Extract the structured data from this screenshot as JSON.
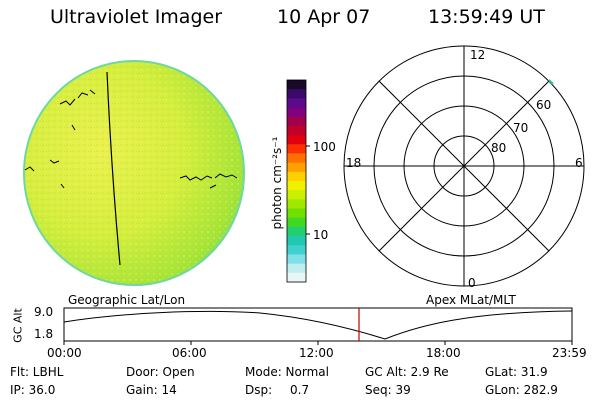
{
  "header": {
    "title": "Ultraviolet Imager",
    "date": "10 Apr 07",
    "time": "13:59:49 UT"
  },
  "colorbar": {
    "unit_label": "photon cm⁻²s⁻¹",
    "tick_100": "100",
    "tick_10": "10",
    "colors": [
      "#1a0a2a",
      "#3a0a6a",
      "#5a0a8a",
      "#800080",
      "#a0004a",
      "#c0002a",
      "#e00010",
      "#ff3000",
      "#ff7000",
      "#ffa000",
      "#ffd000",
      "#f0f000",
      "#c8f000",
      "#a0e800",
      "#70e000",
      "#40d820",
      "#20d070",
      "#20c8b0",
      "#40d0d0",
      "#80e0e8",
      "#c0eef0",
      "#e8f6f6"
    ]
  },
  "polar_plot": {
    "mlt_top": "12",
    "mlt_left": "18",
    "mlt_right": "6",
    "mlt_bottom": "0",
    "lat_60": "60",
    "lat_70": "70",
    "lat_80": "80"
  },
  "orbit_plot": {
    "left_caption": "Geographic Lat/Lon",
    "right_caption": "Apex MLat/MLT",
    "axis_label": "GC Alt",
    "y_max": "9.0",
    "y_min": "1.8",
    "time_ticks": [
      "00:00",
      "06:00",
      "12:00",
      "18:00",
      "23:59"
    ]
  },
  "info": {
    "row1": {
      "flt": "Flt: LBHL",
      "door": "Door: Open",
      "mode": "Mode: Normal",
      "gc_alt": "GC Alt: 2.9 Re",
      "glat": "GLat:  31.9"
    },
    "row2": {
      "ip": "IP: 36.0",
      "gain": "Gain: 14",
      "dsp_label": "Dsp:",
      "dsp_value": "0.7",
      "seq": "Seq: 39",
      "glon": "GLon: 282.9"
    }
  }
}
